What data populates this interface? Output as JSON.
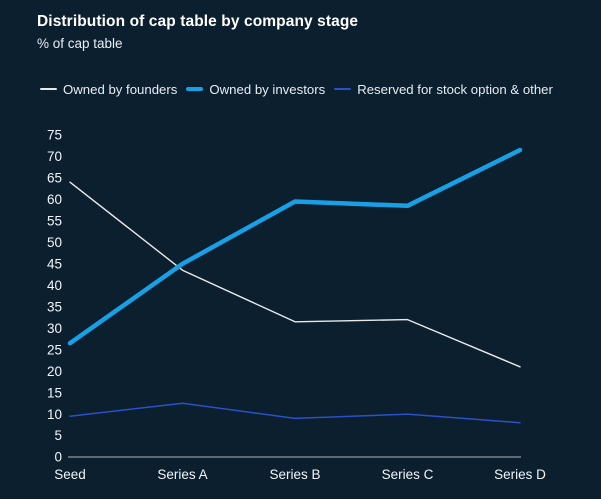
{
  "page": {
    "background": "#0c1f2e"
  },
  "header": {
    "title": "Distribution of cap table by company stage",
    "subtitle": "% of cap table"
  },
  "legend": {
    "items": [
      {
        "id": "founders",
        "label": "Owned by founders",
        "color": "#e9e9e9",
        "thickness": 2
      },
      {
        "id": "investors",
        "label": "Owned by investors",
        "color": "#18a0e6",
        "thickness": 4.5
      },
      {
        "id": "reserved",
        "label": "Reserved for stock option & other",
        "color": "#2b50c9",
        "thickness": 2
      }
    ]
  },
  "chart_data": {
    "type": "line",
    "title": "Distribution of cap table by company stage",
    "ylabel": "% of cap table",
    "xlabel": "",
    "categories": [
      "Seed",
      "Series A",
      "Series B",
      "Series C",
      "Series D"
    ],
    "series": [
      {
        "id": "founders",
        "name": "Owned by founders",
        "color": "#e9e9e9",
        "width": 1.4,
        "values": [
          64,
          43.5,
          31.5,
          32,
          21
        ]
      },
      {
        "id": "reserved",
        "name": "Reserved for stock option & other",
        "color": "#2b50c9",
        "width": 1.5,
        "values": [
          9.5,
          12.5,
          9,
          10,
          8
        ]
      },
      {
        "id": "investors",
        "name": "Owned by investors",
        "color": "#18a0e6",
        "width": 4.5,
        "values": [
          26.5,
          45,
          59.5,
          58.5,
          71.5
        ]
      }
    ],
    "y_ticks": [
      0,
      5,
      10,
      15,
      20,
      25,
      30,
      35,
      40,
      45,
      50,
      55,
      60,
      65,
      70,
      75
    ],
    "ylim": [
      0,
      75
    ],
    "grid": false,
    "legend_position": "top",
    "axis_line_color": "#7d848b"
  }
}
